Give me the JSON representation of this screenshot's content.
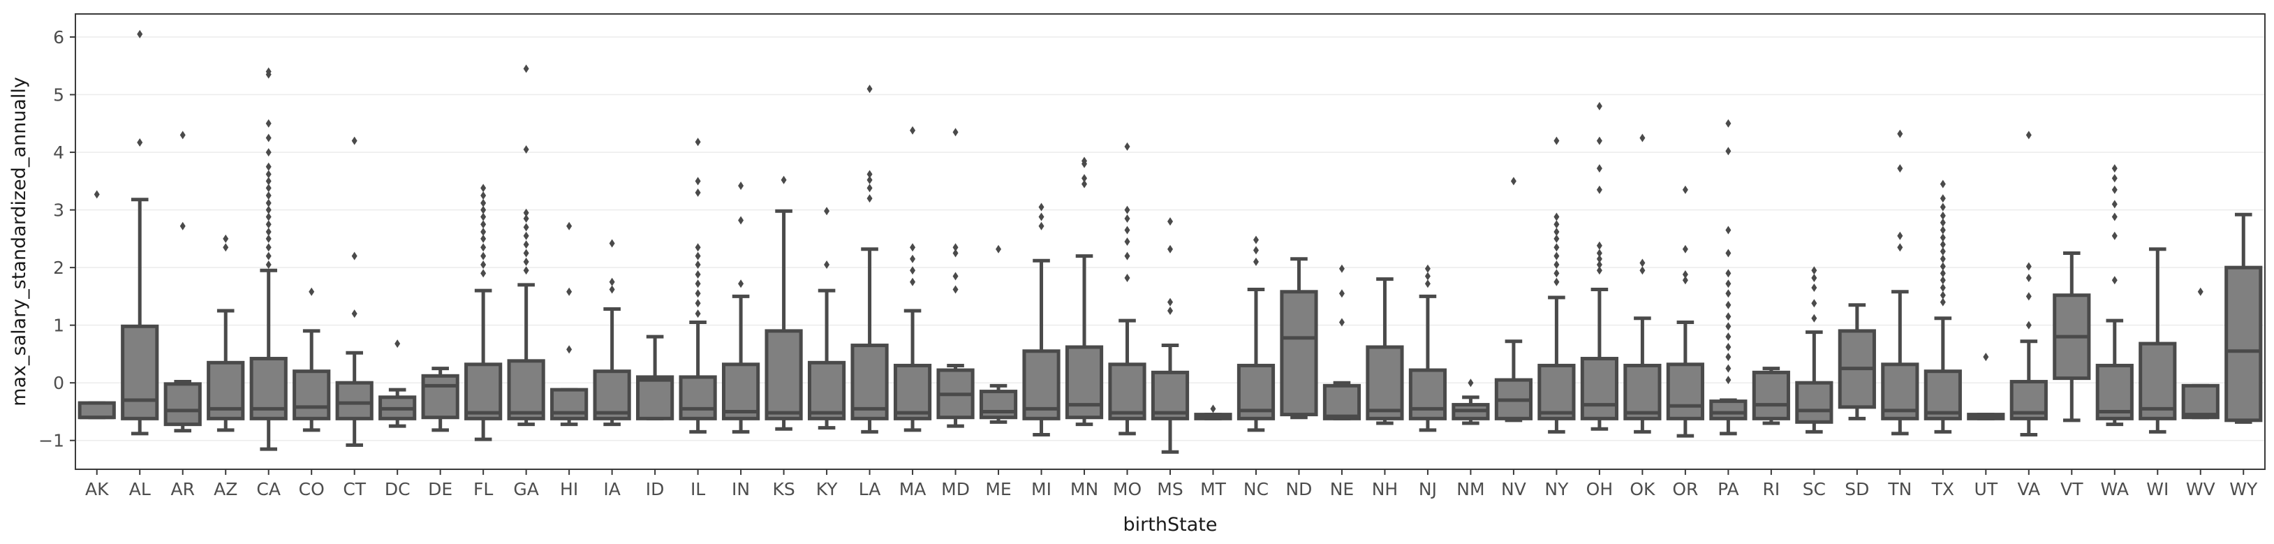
{
  "chart_data": {
    "type": "box",
    "title": "",
    "xlabel": "birthState",
    "ylabel": "max_salary_standardized_annually",
    "ylim": [
      -1.5,
      6.4
    ],
    "yticks": [
      -1,
      0,
      1,
      2,
      3,
      4,
      5,
      6
    ],
    "grid": "horizontal",
    "colors": {
      "box_fill": "#808080",
      "box_line": "#4a4a4a",
      "grid": "#ececec",
      "frame": "#3a3a3a"
    },
    "categories": [
      "AK",
      "AL",
      "AR",
      "AZ",
      "CA",
      "CO",
      "CT",
      "DC",
      "DE",
      "FL",
      "GA",
      "HI",
      "IA",
      "ID",
      "IL",
      "IN",
      "KS",
      "KY",
      "LA",
      "MA",
      "MD",
      "ME",
      "MI",
      "MN",
      "MO",
      "MS",
      "MT",
      "NC",
      "ND",
      "NE",
      "NH",
      "NJ",
      "NM",
      "NV",
      "NY",
      "OH",
      "OK",
      "OR",
      "PA",
      "RI",
      "SC",
      "SD",
      "TN",
      "TX",
      "UT",
      "VA",
      "VT",
      "WA",
      "WI",
      "WV",
      "WY"
    ],
    "boxes": [
      {
        "category": "AK",
        "whisker_low": -0.6,
        "q1": -0.6,
        "median": -0.6,
        "q3": -0.35,
        "whisker_high": -0.35,
        "fliers": [
          3.27
        ]
      },
      {
        "category": "AL",
        "whisker_low": -0.88,
        "q1": -0.62,
        "median": -0.3,
        "q3": 0.98,
        "whisker_high": 3.18,
        "fliers": [
          4.17,
          6.05
        ]
      },
      {
        "category": "AR",
        "whisker_low": -0.83,
        "q1": -0.72,
        "median": -0.48,
        "q3": -0.02,
        "whisker_high": 0.02,
        "fliers": [
          2.72,
          4.3
        ]
      },
      {
        "category": "AZ",
        "whisker_low": -0.82,
        "q1": -0.62,
        "median": -0.45,
        "q3": 0.35,
        "whisker_high": 1.25,
        "fliers": [
          2.35,
          2.5
        ]
      },
      {
        "category": "CA",
        "whisker_low": -1.15,
        "q1": -0.62,
        "median": -0.45,
        "q3": 0.42,
        "whisker_high": 1.95,
        "fliers": [
          2.05,
          2.2,
          2.35,
          2.5,
          2.62,
          2.75,
          2.88,
          3.0,
          3.12,
          3.25,
          3.38,
          3.5,
          3.62,
          3.75,
          4.0,
          4.25,
          4.5,
          5.35,
          5.4
        ]
      },
      {
        "category": "CO",
        "whisker_low": -0.82,
        "q1": -0.62,
        "median": -0.42,
        "q3": 0.2,
        "whisker_high": 0.9,
        "fliers": [
          1.58
        ]
      },
      {
        "category": "CT",
        "whisker_low": -1.08,
        "q1": -0.62,
        "median": -0.35,
        "q3": 0.0,
        "whisker_high": 0.52,
        "fliers": [
          1.2,
          2.2,
          4.2
        ]
      },
      {
        "category": "DC",
        "whisker_low": -0.75,
        "q1": -0.62,
        "median": -0.45,
        "q3": -0.25,
        "whisker_high": -0.12,
        "fliers": [
          0.68
        ]
      },
      {
        "category": "DE",
        "whisker_low": -0.82,
        "q1": -0.6,
        "median": -0.05,
        "q3": 0.12,
        "whisker_high": 0.25,
        "fliers": []
      },
      {
        "category": "FL",
        "whisker_low": -0.98,
        "q1": -0.62,
        "median": -0.52,
        "q3": 0.32,
        "whisker_high": 1.6,
        "fliers": [
          1.9,
          2.05,
          2.2,
          2.35,
          2.5,
          2.62,
          2.75,
          2.88,
          3.0,
          3.12,
          3.25,
          3.38
        ]
      },
      {
        "category": "GA",
        "whisker_low": -0.72,
        "q1": -0.62,
        "median": -0.52,
        "q3": 0.38,
        "whisker_high": 1.7,
        "fliers": [
          1.95,
          2.1,
          2.25,
          2.4,
          2.55,
          2.7,
          2.85,
          2.95,
          4.05,
          5.45
        ]
      },
      {
        "category": "HI",
        "whisker_low": -0.72,
        "q1": -0.62,
        "median": -0.52,
        "q3": -0.12,
        "whisker_high": -0.12,
        "fliers": [
          0.58,
          1.58,
          2.72
        ]
      },
      {
        "category": "IA",
        "whisker_low": -0.72,
        "q1": -0.62,
        "median": -0.52,
        "q3": 0.2,
        "whisker_high": 1.28,
        "fliers": [
          1.62,
          1.75,
          2.42
        ]
      },
      {
        "category": "ID",
        "whisker_low": -0.62,
        "q1": -0.62,
        "median": 0.05,
        "q3": 0.1,
        "whisker_high": 0.8,
        "fliers": []
      },
      {
        "category": "IL",
        "whisker_low": -0.85,
        "q1": -0.62,
        "median": -0.45,
        "q3": 0.1,
        "whisker_high": 1.05,
        "fliers": [
          1.2,
          1.38,
          1.55,
          1.72,
          1.88,
          2.05,
          2.2,
          2.35,
          3.3,
          3.5,
          4.18
        ]
      },
      {
        "category": "IN",
        "whisker_low": -0.85,
        "q1": -0.62,
        "median": -0.5,
        "q3": 0.32,
        "whisker_high": 1.5,
        "fliers": [
          1.72,
          2.82,
          3.42
        ]
      },
      {
        "category": "KS",
        "whisker_low": -0.8,
        "q1": -0.62,
        "median": -0.52,
        "q3": 0.9,
        "whisker_high": 2.98,
        "fliers": [
          3.52
        ]
      },
      {
        "category": "KY",
        "whisker_low": -0.78,
        "q1": -0.62,
        "median": -0.52,
        "q3": 0.35,
        "whisker_high": 1.6,
        "fliers": [
          2.05,
          2.98
        ]
      },
      {
        "category": "LA",
        "whisker_low": -0.85,
        "q1": -0.62,
        "median": -0.45,
        "q3": 0.65,
        "whisker_high": 2.32,
        "fliers": [
          3.2,
          3.38,
          3.52,
          3.62,
          5.1
        ]
      },
      {
        "category": "MA",
        "whisker_low": -0.82,
        "q1": -0.62,
        "median": -0.52,
        "q3": 0.3,
        "whisker_high": 1.25,
        "fliers": [
          1.75,
          1.95,
          2.15,
          2.35,
          4.38
        ]
      },
      {
        "category": "MD",
        "whisker_low": -0.75,
        "q1": -0.6,
        "median": -0.2,
        "q3": 0.22,
        "whisker_high": 0.3,
        "fliers": [
          1.62,
          1.85,
          2.25,
          2.35,
          4.35
        ]
      },
      {
        "category": "ME",
        "whisker_low": -0.68,
        "q1": -0.6,
        "median": -0.5,
        "q3": -0.15,
        "whisker_high": -0.05,
        "fliers": [
          2.32
        ]
      },
      {
        "category": "MI",
        "whisker_low": -0.9,
        "q1": -0.62,
        "median": -0.45,
        "q3": 0.55,
        "whisker_high": 2.12,
        "fliers": [
          2.72,
          2.88,
          3.05
        ]
      },
      {
        "category": "MN",
        "whisker_low": -0.72,
        "q1": -0.6,
        "median": -0.38,
        "q3": 0.62,
        "whisker_high": 2.2,
        "fliers": [
          3.45,
          3.55,
          3.8,
          3.85
        ]
      },
      {
        "category": "MO",
        "whisker_low": -0.88,
        "q1": -0.62,
        "median": -0.52,
        "q3": 0.32,
        "whisker_high": 1.08,
        "fliers": [
          1.82,
          2.2,
          2.45,
          2.65,
          2.85,
          3.0,
          4.1
        ]
      },
      {
        "category": "MS",
        "whisker_low": -1.2,
        "q1": -0.62,
        "median": -0.52,
        "q3": 0.18,
        "whisker_high": 0.65,
        "fliers": [
          1.25,
          1.4,
          2.32,
          2.8
        ]
      },
      {
        "category": "MT",
        "whisker_low": -0.62,
        "q1": -0.62,
        "median": -0.58,
        "q3": -0.55,
        "whisker_high": -0.55,
        "fliers": [
          -0.45
        ]
      },
      {
        "category": "NC",
        "whisker_low": -0.82,
        "q1": -0.62,
        "median": -0.48,
        "q3": 0.3,
        "whisker_high": 1.62,
        "fliers": [
          2.1,
          2.3,
          2.48
        ]
      },
      {
        "category": "ND",
        "whisker_low": -0.6,
        "q1": -0.55,
        "median": 0.78,
        "q3": 1.58,
        "whisker_high": 2.15,
        "fliers": []
      },
      {
        "category": "NE",
        "whisker_low": -0.62,
        "q1": -0.62,
        "median": -0.58,
        "q3": -0.05,
        "whisker_high": 0.0,
        "fliers": [
          1.05,
          1.55,
          1.98
        ]
      },
      {
        "category": "NH",
        "whisker_low": -0.7,
        "q1": -0.62,
        "median": -0.48,
        "q3": 0.62,
        "whisker_high": 1.8,
        "fliers": []
      },
      {
        "category": "NJ",
        "whisker_low": -0.82,
        "q1": -0.62,
        "median": -0.45,
        "q3": 0.22,
        "whisker_high": 1.5,
        "fliers": [
          1.72,
          1.85,
          1.98
        ]
      },
      {
        "category": "NM",
        "whisker_low": -0.7,
        "q1": -0.62,
        "median": -0.48,
        "q3": -0.38,
        "whisker_high": -0.25,
        "fliers": [
          0.0
        ]
      },
      {
        "category": "NV",
        "whisker_low": -0.65,
        "q1": -0.62,
        "median": -0.3,
        "q3": 0.05,
        "whisker_high": 0.72,
        "fliers": [
          3.5
        ]
      },
      {
        "category": "NY",
        "whisker_low": -0.85,
        "q1": -0.62,
        "median": -0.52,
        "q3": 0.3,
        "whisker_high": 1.48,
        "fliers": [
          1.75,
          1.9,
          2.05,
          2.2,
          2.35,
          2.5,
          2.62,
          2.75,
          2.88,
          4.2
        ]
      },
      {
        "category": "OH",
        "whisker_low": -0.8,
        "q1": -0.62,
        "median": -0.38,
        "q3": 0.42,
        "whisker_high": 1.62,
        "fliers": [
          1.95,
          2.05,
          2.15,
          2.25,
          2.38,
          3.35,
          3.72,
          4.2,
          4.8
        ]
      },
      {
        "category": "OK",
        "whisker_low": -0.85,
        "q1": -0.62,
        "median": -0.52,
        "q3": 0.3,
        "whisker_high": 1.12,
        "fliers": [
          1.95,
          2.08,
          4.25
        ]
      },
      {
        "category": "OR",
        "whisker_low": -0.92,
        "q1": -0.62,
        "median": -0.4,
        "q3": 0.32,
        "whisker_high": 1.05,
        "fliers": [
          1.78,
          1.88,
          2.32,
          3.35
        ]
      },
      {
        "category": "PA",
        "whisker_low": -0.88,
        "q1": -0.62,
        "median": -0.52,
        "q3": -0.32,
        "whisker_high": -0.3,
        "fliers": [
          0.05,
          0.25,
          0.45,
          0.62,
          0.8,
          0.98,
          1.15,
          1.35,
          1.55,
          1.72,
          1.9,
          2.25,
          2.65,
          4.02,
          4.5
        ]
      },
      {
        "category": "RI",
        "whisker_low": -0.7,
        "q1": -0.62,
        "median": -0.38,
        "q3": 0.18,
        "whisker_high": 0.25,
        "fliers": []
      },
      {
        "category": "SC",
        "whisker_low": -0.85,
        "q1": -0.68,
        "median": -0.48,
        "q3": 0.0,
        "whisker_high": 0.88,
        "fliers": [
          1.12,
          1.38,
          1.65,
          1.82,
          1.95
        ]
      },
      {
        "category": "SD",
        "whisker_low": -0.62,
        "q1": -0.42,
        "median": 0.25,
        "q3": 0.9,
        "whisker_high": 1.35,
        "fliers": []
      },
      {
        "category": "TN",
        "whisker_low": -0.88,
        "q1": -0.62,
        "median": -0.48,
        "q3": 0.32,
        "whisker_high": 1.58,
        "fliers": [
          2.35,
          2.55,
          3.72,
          4.32
        ]
      },
      {
        "category": "TX",
        "whisker_low": -0.85,
        "q1": -0.62,
        "median": -0.52,
        "q3": 0.2,
        "whisker_high": 1.12,
        "fliers": [
          1.4,
          1.52,
          1.65,
          1.78,
          1.9,
          2.02,
          2.15,
          2.28,
          2.4,
          2.52,
          2.65,
          2.78,
          2.9,
          3.05,
          3.2,
          3.45
        ]
      },
      {
        "category": "UT",
        "whisker_low": -0.62,
        "q1": -0.62,
        "median": -0.58,
        "q3": -0.55,
        "whisker_high": -0.55,
        "fliers": [
          0.45
        ]
      },
      {
        "category": "VA",
        "whisker_low": -0.9,
        "q1": -0.62,
        "median": -0.52,
        "q3": 0.02,
        "whisker_high": 0.72,
        "fliers": [
          1.0,
          1.5,
          1.82,
          2.02,
          4.3
        ]
      },
      {
        "category": "VT",
        "whisker_low": -0.65,
        "q1": 0.08,
        "median": 0.8,
        "q3": 1.52,
        "whisker_high": 2.25,
        "fliers": []
      },
      {
        "category": "WA",
        "whisker_low": -0.72,
        "q1": -0.62,
        "median": -0.5,
        "q3": 0.3,
        "whisker_high": 1.08,
        "fliers": [
          1.78,
          2.55,
          2.88,
          3.1,
          3.35,
          3.55,
          3.72
        ]
      },
      {
        "category": "WI",
        "whisker_low": -0.85,
        "q1": -0.62,
        "median": -0.45,
        "q3": 0.68,
        "whisker_high": 2.32,
        "fliers": []
      },
      {
        "category": "WV",
        "whisker_low": -0.6,
        "q1": -0.6,
        "median": -0.55,
        "q3": -0.05,
        "whisker_high": -0.05,
        "fliers": [
          1.58
        ]
      },
      {
        "category": "WY",
        "whisker_low": -0.68,
        "q1": -0.65,
        "median": 0.55,
        "q3": 2.0,
        "whisker_high": 2.92,
        "fliers": []
      }
    ]
  }
}
